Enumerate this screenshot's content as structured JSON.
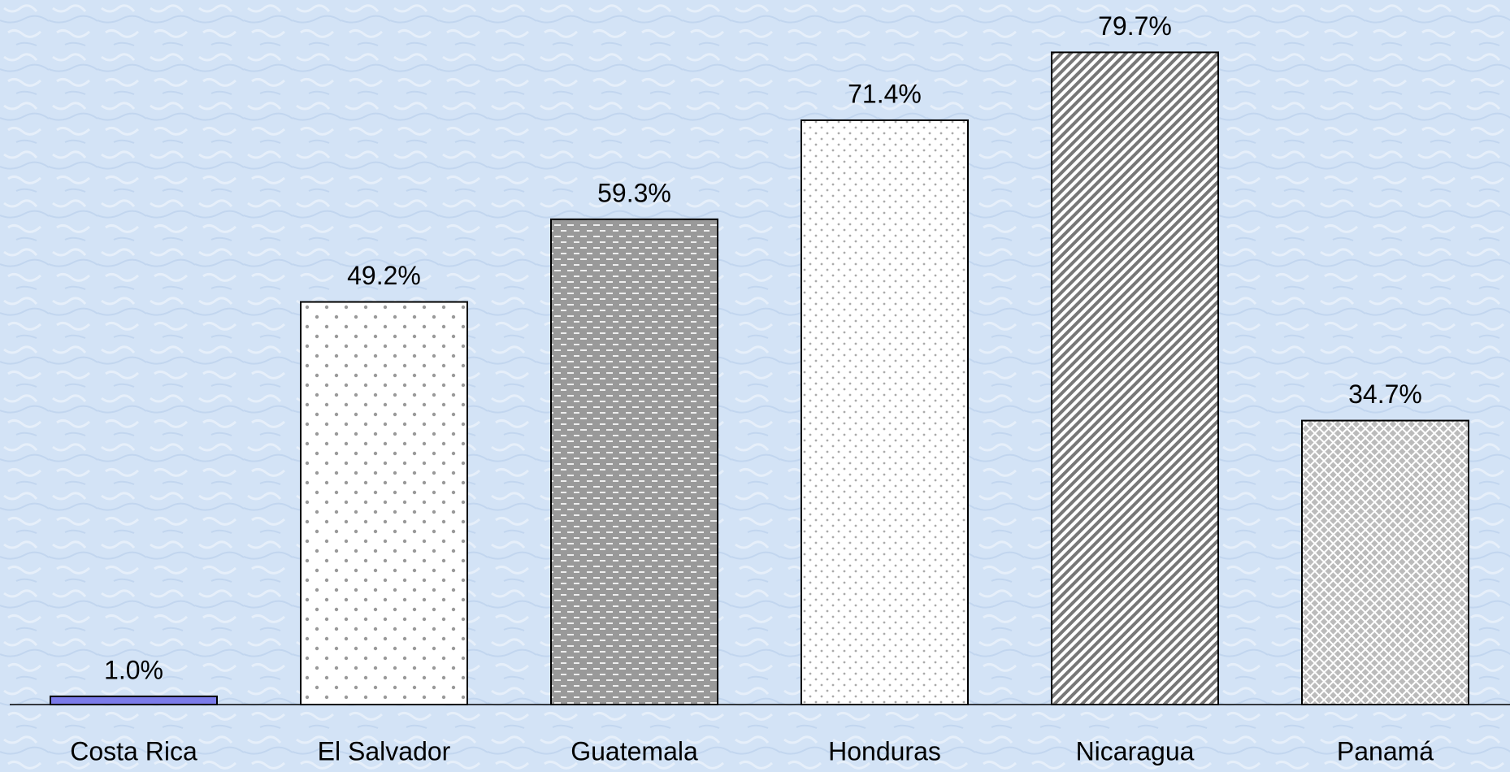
{
  "chart_data": {
    "type": "bar",
    "categories": [
      "Costa Rica",
      "El Salvador",
      "Guatemala",
      "Honduras",
      "Nicaragua",
      "Panamá"
    ],
    "values": [
      1.0,
      49.2,
      59.3,
      71.4,
      79.7,
      34.7
    ],
    "value_labels": [
      "1.0%",
      "49.2%",
      "59.3%",
      "71.4%",
      "79.7%",
      "34.7%"
    ],
    "color": "#7b7bea"
  }
}
